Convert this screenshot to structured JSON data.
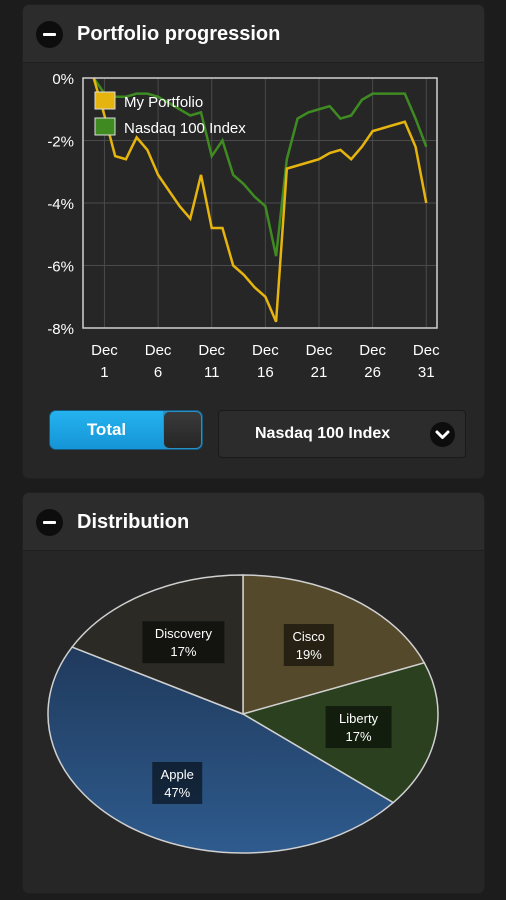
{
  "portfolio_panel": {
    "title": "Portfolio progression",
    "toggle_label": "Total",
    "benchmark_select": "Nasdaq 100 Index"
  },
  "distribution_panel": {
    "title": "Distribution"
  },
  "colors": {
    "portfolio_line": "#e5b40e",
    "index_line": "#3f8b22",
    "apple": "#284a72",
    "discovery": "#2c2a24",
    "cisco": "#54492a",
    "liberty": "#2b401f",
    "accent": "#1aa3e3"
  },
  "chart_data": [
    {
      "type": "line",
      "x": [
        0,
        1,
        2,
        3,
        4,
        5,
        6,
        7,
        8,
        9,
        10,
        11,
        12,
        13,
        14,
        15,
        16,
        17,
        18,
        19,
        20,
        21,
        22,
        23,
        24,
        25,
        26,
        27,
        28,
        29,
        30,
        31
      ],
      "x_tick_values": [
        1,
        6,
        11,
        16,
        21,
        26,
        31
      ],
      "x_tick_labels": [
        [
          "Dec",
          "1"
        ],
        [
          "Dec",
          "6"
        ],
        [
          "Dec",
          "11"
        ],
        [
          "Dec",
          "16"
        ],
        [
          "Dec",
          "21"
        ],
        [
          "Dec",
          "26"
        ],
        [
          "Dec",
          "31"
        ]
      ],
      "xlim": [
        -1,
        32
      ],
      "ylim": [
        -8,
        0
      ],
      "y_ticks": [
        0,
        -2,
        -4,
        -6,
        -8
      ],
      "y_tick_labels": [
        "0%",
        "-2%",
        "-4%",
        "-6%",
        "-8%"
      ],
      "grid": true,
      "legend_position": "top-left",
      "series": [
        {
          "name": "My Portfolio",
          "values": [
            0,
            -1.2,
            -2.5,
            -2.6,
            -1.9,
            -2.3,
            -3.1,
            -3.6,
            -4.1,
            -4.5,
            -3.1,
            -4.8,
            -4.8,
            -6.0,
            -6.3,
            -6.7,
            -7.0,
            -7.8,
            -2.9,
            -2.8,
            -2.7,
            -2.6,
            -2.4,
            -2.3,
            -2.6,
            -2.2,
            -1.7,
            -1.6,
            -1.5,
            -1.4,
            -2.2,
            -4.0
          ]
        },
        {
          "name": "Nasdaq 100 Index",
          "values": [
            0,
            -0.5,
            -0.6,
            -0.6,
            -0.5,
            -0.5,
            -0.6,
            -0.8,
            -1.0,
            -1.2,
            -1.1,
            -2.5,
            -2.0,
            -3.1,
            -3.4,
            -3.8,
            -4.1,
            -5.7,
            -2.6,
            -1.3,
            -1.1,
            -1.0,
            -0.9,
            -1.3,
            -1.2,
            -0.7,
            -0.5,
            -0.5,
            -0.5,
            -0.5,
            -1.3,
            -2.2
          ]
        }
      ]
    },
    {
      "type": "pie",
      "slices": [
        {
          "label": "Cisco",
          "pct_label": "19%",
          "value": 19
        },
        {
          "label": "Liberty",
          "pct_label": "17%",
          "value": 17
        },
        {
          "label": "Apple",
          "pct_label": "47%",
          "value": 47
        },
        {
          "label": "Discovery",
          "pct_label": "17%",
          "value": 17
        }
      ]
    }
  ]
}
